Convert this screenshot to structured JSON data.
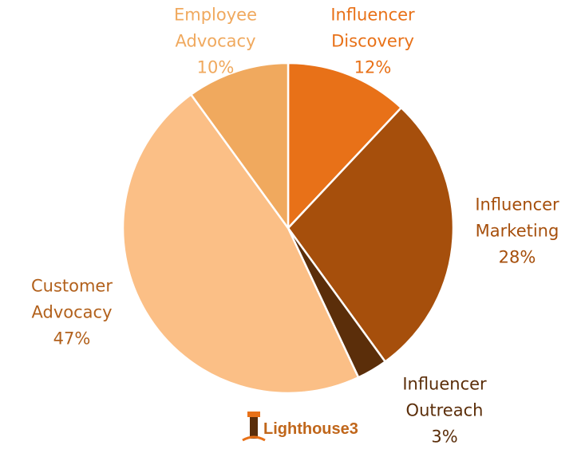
{
  "chart_data": {
    "type": "pie",
    "categories": [
      "Influencer Discovery",
      "Influencer Marketing",
      "Influencer Outreach",
      "Customer Advocacy",
      "Employee Advocacy"
    ],
    "values": [
      12,
      28,
      3,
      47,
      10
    ],
    "value_labels": [
      "12%",
      "28%",
      "3%",
      "47%",
      "10%"
    ],
    "colors": [
      "#e87118",
      "#a64f0c",
      "#5b2e0a",
      "#fbbf86",
      "#f0a95e"
    ],
    "label_colors": [
      "#e87118",
      "#a64f0c",
      "#5b2e0a",
      "#b2611c",
      "#f0a95e"
    ],
    "logo": "Lighthouse3"
  }
}
